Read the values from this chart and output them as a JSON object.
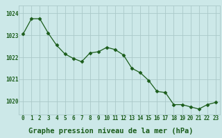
{
  "x": [
    0,
    1,
    2,
    3,
    4,
    5,
    6,
    7,
    8,
    9,
    10,
    11,
    12,
    13,
    14,
    15,
    16,
    17,
    18,
    19,
    20,
    21,
    22,
    23
  ],
  "y": [
    1023.05,
    1023.75,
    1023.75,
    1023.1,
    1022.55,
    1022.15,
    1021.95,
    1021.8,
    1022.2,
    1022.25,
    1022.45,
    1022.35,
    1022.1,
    1021.5,
    1021.3,
    1020.95,
    1020.45,
    1020.4,
    1019.85,
    1019.85,
    1019.75,
    1019.65,
    1019.85,
    1019.95
  ],
  "line_color": "#1a5c1a",
  "marker": "D",
  "marker_size": 2.5,
  "bg_color": "#cce8e8",
  "grid_color": "#aac8c8",
  "title": "Graphe pression niveau de la mer (hPa)",
  "ylim": [
    1019.4,
    1024.35
  ],
  "yticks": [
    1020,
    1021,
    1022,
    1023,
    1024
  ],
  "xticks": [
    0,
    1,
    2,
    3,
    4,
    5,
    6,
    7,
    8,
    9,
    10,
    11,
    12,
    13,
    14,
    15,
    16,
    17,
    18,
    19,
    20,
    21,
    22,
    23
  ],
  "text_color": "#1a5c1a",
  "axis_label_size": 5.5,
  "title_size": 7.5
}
